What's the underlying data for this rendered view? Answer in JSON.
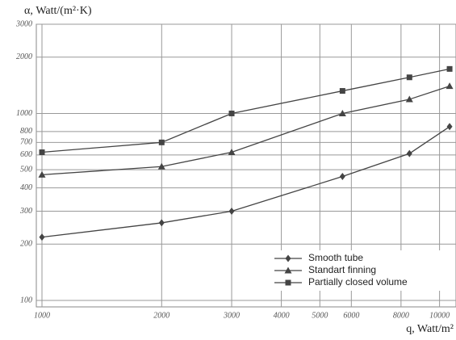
{
  "chart_data": {
    "type": "line",
    "y_label": "α, Watt/(m²·K)",
    "x_label": "q, Watt/m²",
    "log_x": true,
    "log_y": true,
    "grid": true,
    "legend": "lower right",
    "xlim": [
      1000,
      11000
    ],
    "ylim": [
      100,
      3000
    ],
    "xticks": [
      1000,
      2000,
      3000,
      4000,
      5000,
      6000,
      8000,
      10000
    ],
    "yticks": [
      100,
      200,
      300,
      400,
      500,
      600,
      700,
      800,
      1000,
      2000,
      3000
    ],
    "x": [
      1000,
      2000,
      3000,
      5700,
      8400,
      10600
    ],
    "series": [
      {
        "name": "Smooth tube",
        "color": "#444444",
        "marker": "diamond",
        "values": [
          218,
          260,
          300,
          460,
          610,
          850
        ]
      },
      {
        "name": "Standart finning",
        "color": "#444444",
        "marker": "triangle",
        "values": [
          470,
          520,
          620,
          1000,
          1190,
          1400
        ]
      },
      {
        "name": "Partially closed volume",
        "color": "#444444",
        "marker": "square",
        "values": [
          620,
          700,
          1000,
          1320,
          1560,
          1730
        ]
      }
    ]
  }
}
